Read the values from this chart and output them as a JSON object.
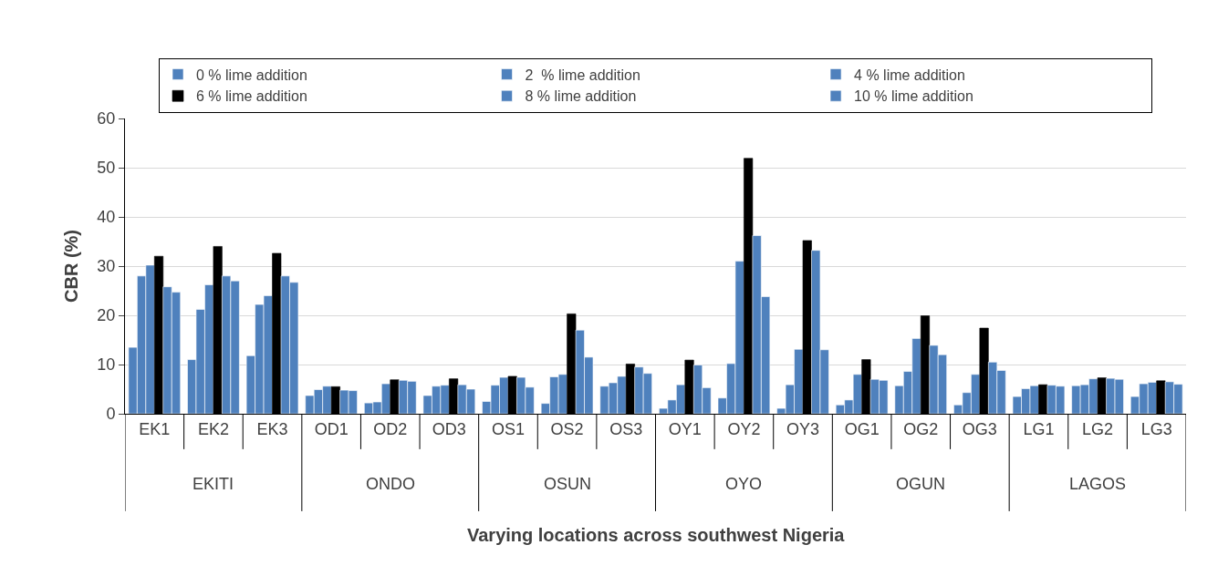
{
  "chart_data": {
    "type": "bar",
    "xlabel": "Varying locations across southwest Nigeria",
    "ylabel": "CBR (%)",
    "categories": [
      "EK1",
      "EK2",
      "EK3",
      "OD1",
      "OD2",
      "OD3",
      "OS1",
      "OS2",
      "OS3",
      "OY1",
      "OY2",
      "OY3",
      "OG1",
      "OG2",
      "OG3",
      "LG1",
      "LG2",
      "LG3"
    ],
    "annotations": [
      "EKITI",
      "ONDO",
      "OSUN",
      "OYO",
      "OGUN",
      "LAGOS"
    ],
    "series": [
      {
        "name": "0 % lime addition",
        "color": "#4f81bd",
        "values": [
          13.5,
          11,
          11.8,
          3.7,
          2.2,
          3.7,
          2.5,
          2.1,
          5.6,
          1.1,
          3.2,
          1.1,
          1.8,
          5.7,
          1.8,
          3.5,
          5.7,
          3.5
        ]
      },
      {
        "name": "2  % lime addition",
        "color": "#4f81bd",
        "values": [
          28,
          21.2,
          22.2,
          4.9,
          2.4,
          5.6,
          5.8,
          7.5,
          6.3,
          2.8,
          10.2,
          5.9,
          2.8,
          8.6,
          4.3,
          5.1,
          5.9,
          6.1
        ]
      },
      {
        "name": "4 % lime addition",
        "color": "#4f81bd",
        "values": [
          30.2,
          26.2,
          24,
          5.6,
          6.1,
          5.8,
          7.4,
          8.0,
          7.6,
          5.9,
          31.0,
          13.1,
          8.0,
          15.3,
          8.0,
          5.7,
          7.1,
          6.4
        ]
      },
      {
        "name": "6 % lime addition",
        "color": "#000000",
        "values": [
          32,
          34,
          32.6,
          5.5,
          6.9,
          7.1,
          7.6,
          20.3,
          10.1,
          10.9,
          51.9,
          35.2,
          11.0,
          19.9,
          17.4,
          5.9,
          7.3,
          6.7
        ]
      },
      {
        "name": "8 % lime addition",
        "color": "#4f81bd",
        "values": [
          25.8,
          28,
          28,
          4.8,
          6.8,
          5.9,
          7.4,
          17.0,
          9.5,
          9.9,
          36.2,
          33.2,
          7.0,
          13.9,
          10.5,
          5.8,
          7.2,
          6.5
        ]
      },
      {
        "name": "10 % lime addition",
        "color": "#4f81bd",
        "values": [
          24.7,
          27,
          26.7,
          4.7,
          6.6,
          5.0,
          5.4,
          11.5,
          8.2,
          5.3,
          23.8,
          13.0,
          6.8,
          12.0,
          8.8,
          5.6,
          7.0,
          6.0
        ]
      }
    ],
    "ylim": [
      0,
      60
    ],
    "yticks": [
      0,
      10,
      20,
      30,
      40,
      50,
      60
    ],
    "grid": "y",
    "legend": "top"
  }
}
